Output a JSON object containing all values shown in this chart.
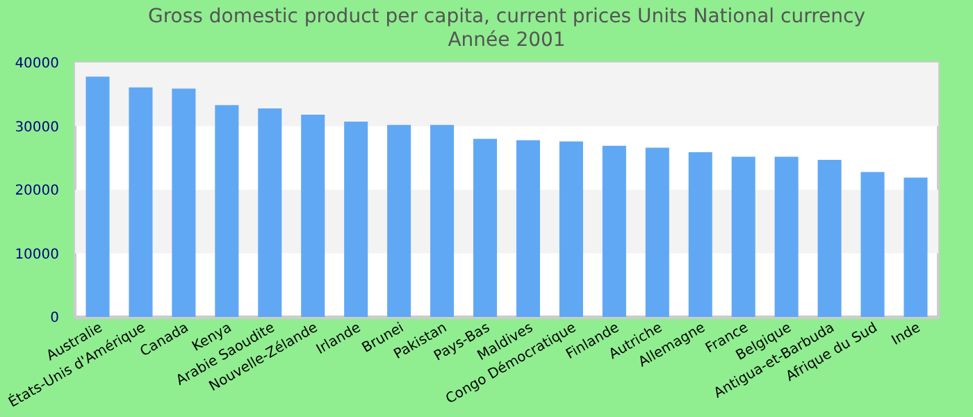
{
  "chart_data": {
    "type": "bar",
    "title": "Gross domestic product per capita, current prices Units National currency",
    "subtitle": "Année 2001",
    "categories": [
      "Australie",
      "États-Unis d'Amérique",
      "Canada",
      "Kenya",
      "Arabie Saoudite",
      "Nouvelle-Zélande",
      "Irlande",
      "Brunei",
      "Pakistan",
      "Pays-Bas",
      "Maldives",
      "Congo Démocratique",
      "Finlande",
      "Autriche",
      "Allemagne",
      "France",
      "Belgique",
      "Antigua-et-Barbuda",
      "Afrique du Sud",
      "Inde"
    ],
    "values": [
      37800,
      36100,
      35900,
      33300,
      32800,
      31800,
      30700,
      30200,
      30200,
      28000,
      27800,
      27600,
      26900,
      26600,
      25900,
      25200,
      25200,
      24700,
      22800,
      21900
    ],
    "color": "#61a8f4",
    "ylim": [
      0,
      40000
    ],
    "yticks": [
      0,
      10000,
      20000,
      30000,
      40000
    ],
    "bands": [
      {
        "axis": "y",
        "from": 10000,
        "to": 20000,
        "color": "#f3f3f3"
      },
      {
        "axis": "y",
        "from": 30000,
        "to": 40000,
        "color": "#f3f3f3"
      }
    ]
  }
}
